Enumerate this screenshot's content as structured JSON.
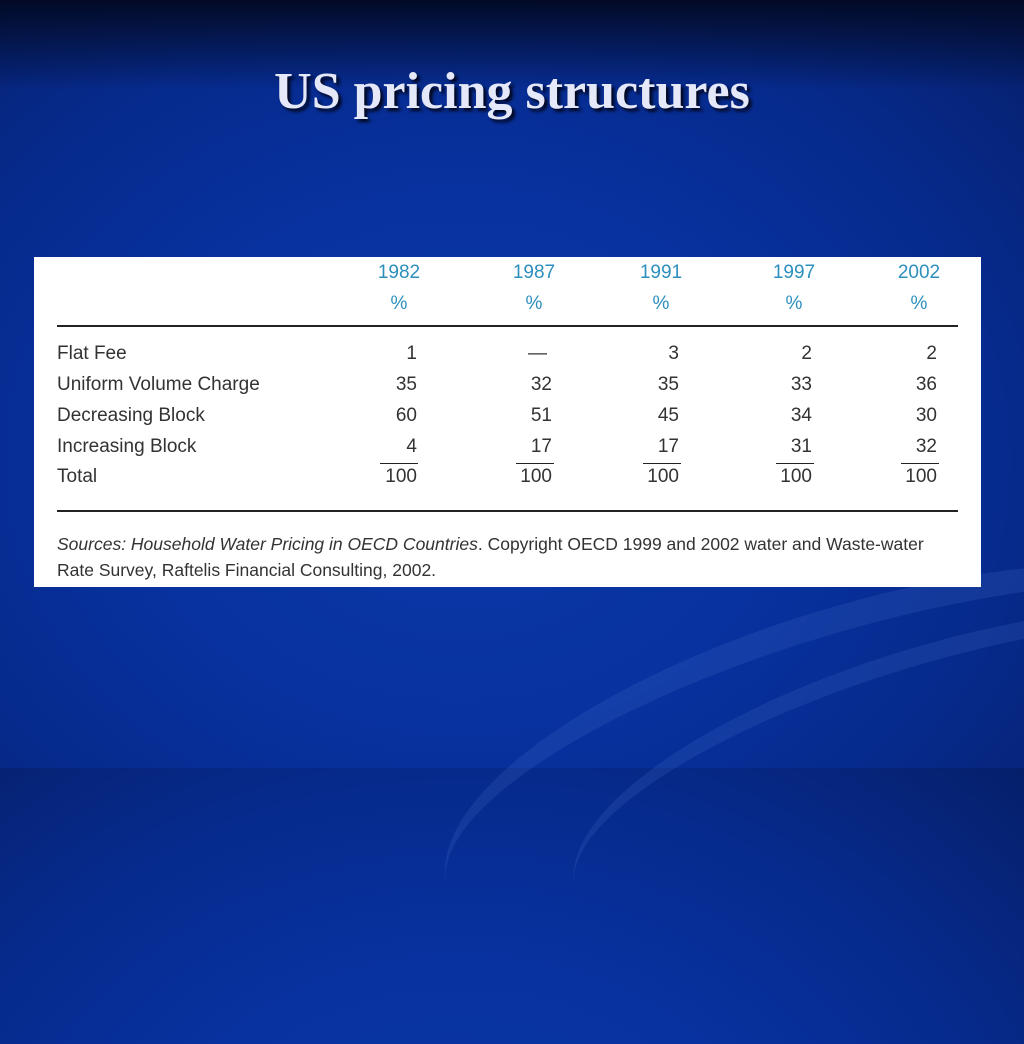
{
  "title": "US pricing structures",
  "table": {
    "years": [
      "1982",
      "1987",
      "1991",
      "1997",
      "2002"
    ],
    "unit": "%",
    "rows": [
      {
        "label": "Flat Fee",
        "values": [
          "1",
          "—",
          "3",
          "2",
          "2"
        ]
      },
      {
        "label": "Uniform Volume Charge",
        "values": [
          "35",
          "32",
          "35",
          "33",
          "36"
        ]
      },
      {
        "label": "Decreasing Block",
        "values": [
          "60",
          "51",
          "45",
          "34",
          "30"
        ]
      },
      {
        "label": "Increasing Block",
        "values": [
          "4",
          "17",
          "17",
          "31",
          "32"
        ]
      },
      {
        "label": "Total",
        "values": [
          "100",
          "100",
          "100",
          "100",
          "100"
        ]
      }
    ],
    "source_italic": "Sources: Household Water Pricing in OECD Countries",
    "source_rest": ". Copyright OECD 1999 and 2002 water and Waste-water Rate Survey, Raftelis Financial Consulting, 2002."
  },
  "colors": {
    "header_text": "#2c8fbd",
    "title_text": "#e4e8f8",
    "background": "#0832a0"
  }
}
